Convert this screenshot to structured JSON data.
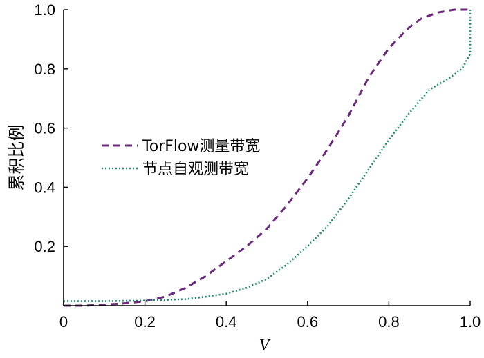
{
  "chart_data": {
    "type": "line",
    "title": "",
    "xlabel": "V",
    "ylabel": "累积比例",
    "xlim": [
      0,
      1.0
    ],
    "ylim": [
      0,
      1.0
    ],
    "x_ticks": [
      "0",
      "0.2",
      "0.4",
      "0.6",
      "0.8",
      "1.0"
    ],
    "y_ticks": [
      "0.2",
      "0.4",
      "0.6",
      "0.8",
      "1.0"
    ],
    "legend_position": "center-left",
    "grid": false,
    "series": [
      {
        "name": "TorFlow测量带宽",
        "color": "#6b2a7d",
        "style": "dashed",
        "x": [
          0,
          0.05,
          0.1,
          0.15,
          0.2,
          0.25,
          0.3,
          0.35,
          0.4,
          0.45,
          0.5,
          0.55,
          0.6,
          0.65,
          0.7,
          0.75,
          0.8,
          0.85,
          0.88,
          0.92,
          0.96,
          0.98,
          1.0
        ],
        "y": [
          0,
          0,
          0.003,
          0.008,
          0.015,
          0.03,
          0.06,
          0.1,
          0.15,
          0.2,
          0.26,
          0.34,
          0.43,
          0.53,
          0.64,
          0.77,
          0.87,
          0.94,
          0.97,
          0.99,
          1.0,
          1.0,
          1.0
        ]
      },
      {
        "name": "节点自观测带宽",
        "color": "#1d8a70",
        "style": "dotted",
        "x": [
          0,
          0.1,
          0.2,
          0.3,
          0.35,
          0.4,
          0.45,
          0.5,
          0.55,
          0.6,
          0.65,
          0.7,
          0.75,
          0.8,
          0.85,
          0.9,
          0.95,
          0.98,
          1.0,
          1.0
        ],
        "y": [
          0.015,
          0.015,
          0.017,
          0.022,
          0.03,
          0.04,
          0.06,
          0.09,
          0.14,
          0.2,
          0.27,
          0.36,
          0.46,
          0.56,
          0.65,
          0.73,
          0.77,
          0.8,
          0.85,
          1.0
        ]
      }
    ]
  }
}
